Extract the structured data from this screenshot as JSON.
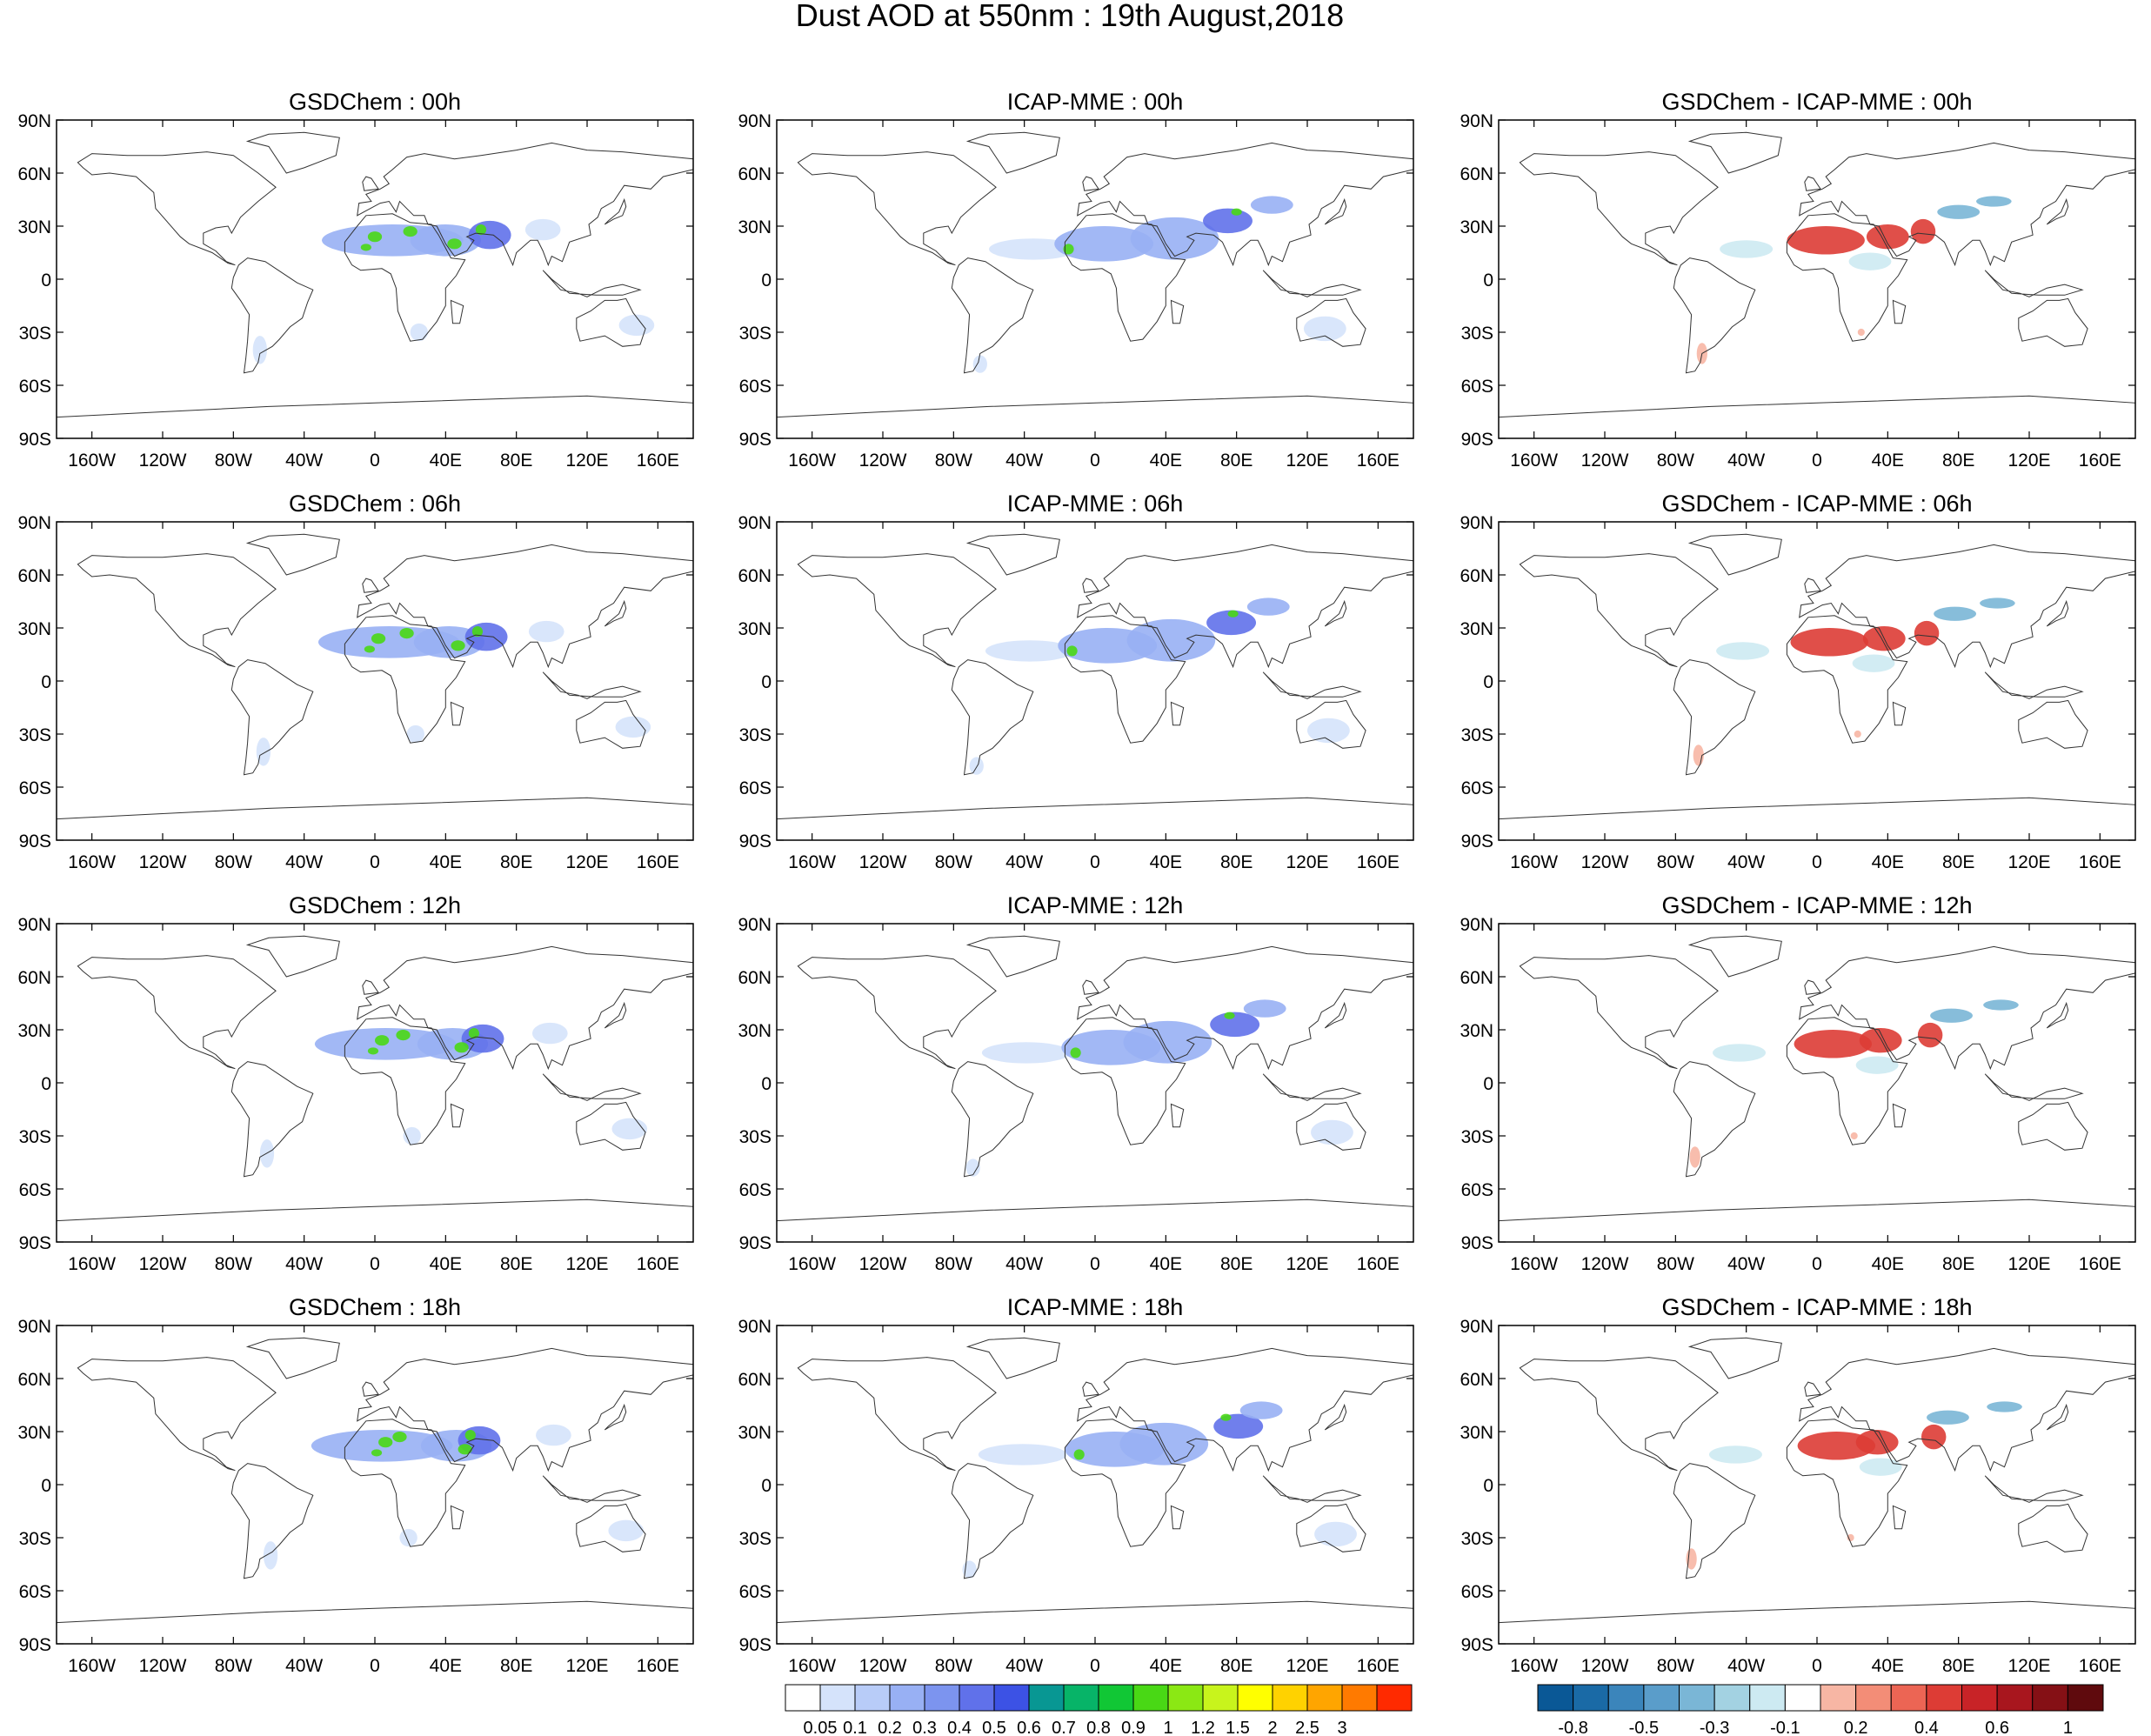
{
  "figure": {
    "title": "Dust AOD at 550nm : 19th August,2018"
  },
  "columns": [
    {
      "key": "gsdchem",
      "prefix": "GSDChem : ",
      "kind": "aod"
    },
    {
      "key": "icap",
      "prefix": "ICAP-MME : ",
      "kind": "aod"
    },
    {
      "key": "diff",
      "prefix": "GSDChem - ICAP-MME : ",
      "kind": "diff"
    }
  ],
  "hours": [
    "00h",
    "06h",
    "12h",
    "18h"
  ],
  "axes": {
    "lat_labels": [
      "90N",
      "60N",
      "30N",
      "0",
      "30S",
      "60S",
      "90S"
    ],
    "lon_labels": [
      "160W",
      "120W",
      "80W",
      "40W",
      "0",
      "40E",
      "80E",
      "120E",
      "160E"
    ],
    "lat_values": [
      90,
      60,
      30,
      0,
      -30,
      -60,
      -90
    ],
    "lon_values": [
      -160,
      -120,
      -80,
      -40,
      0,
      40,
      80,
      120,
      160
    ],
    "lon_range": [
      -180,
      180
    ],
    "lat_range": [
      -90,
      90
    ]
  },
  "colorbar_aod": {
    "labels": [
      "0.05",
      "0.1",
      "0.2",
      "0.3",
      "0.4",
      "0.5",
      "0.6",
      "0.7",
      "0.8",
      "0.9",
      "1",
      "1.2",
      "1.5",
      "2",
      "2.5",
      "3"
    ],
    "colors": [
      "#ffffff",
      "#d5e3fb",
      "#b8ccf8",
      "#98b0f4",
      "#7c94ef",
      "#6071ea",
      "#3c52e5",
      "#089793",
      "#07b468",
      "#11c735",
      "#49d815",
      "#8be814",
      "#c8f41c",
      "#ffff00",
      "#ffd200",
      "#ffa500",
      "#ff7a00",
      "#ff2a00"
    ]
  },
  "colorbar_diff": {
    "labels": [
      "-0.8",
      "-0.5",
      "-0.3",
      "-0.1",
      "0.2",
      "0.4",
      "0.6",
      "1"
    ],
    "colors": [
      "#0a5896",
      "#1a6aa6",
      "#3b85bb",
      "#5a9dca",
      "#7ab6d6",
      "#a3d2e2",
      "#cdeaf2",
      "#ffffff",
      "#f7b6a4",
      "#f38d77",
      "#ec6554",
      "#dd3c35",
      "#c82327",
      "#a8161e",
      "#851015",
      "#5f0a0d"
    ]
  },
  "map_colors": {
    "coast": "#333333",
    "ocean": "#ffffff",
    "aod_low": "#d5e3fb",
    "aod_mid": "#98b0f4",
    "aod_high": "#6071ea",
    "aod_peak": "#49d815",
    "diff_pos": "#dd3c35",
    "diff_pos_low": "#f7b6a4",
    "diff_neg": "#7ab6d6",
    "diff_neg_low": "#cdeaf2"
  }
}
